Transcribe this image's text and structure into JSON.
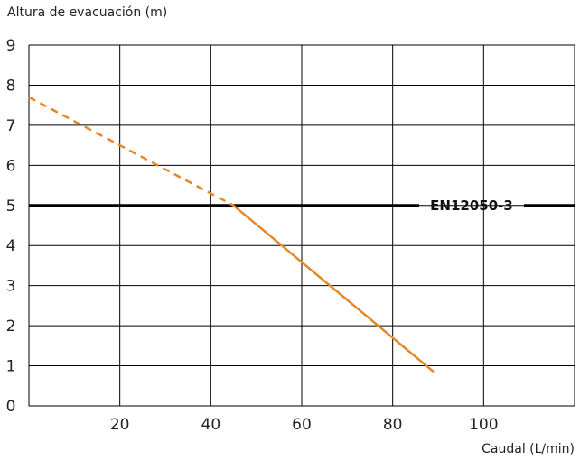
{
  "chart_data": {
    "type": "line",
    "title": "",
    "xlabel": "Caudal (L/min)",
    "ylabel": "Altura de evacuación (m)",
    "xlim": [
      0,
      120
    ],
    "ylim": [
      0,
      9
    ],
    "x_ticks": [
      20,
      40,
      60,
      80,
      100
    ],
    "y_ticks": [
      0,
      1,
      2,
      3,
      4,
      5,
      6,
      7,
      8,
      9
    ],
    "grid": true,
    "series": [
      {
        "style": "dashed",
        "color": "#e8862a",
        "points": [
          [
            0,
            7.7
          ],
          [
            45,
            5.0
          ]
        ]
      },
      {
        "style": "solid",
        "color": "#e8862a",
        "points": [
          [
            45,
            5.0
          ],
          [
            89,
            0.85
          ]
        ]
      }
    ],
    "reference_line": {
      "y": 5,
      "label": "EN12050-3",
      "color": "#000000"
    }
  }
}
